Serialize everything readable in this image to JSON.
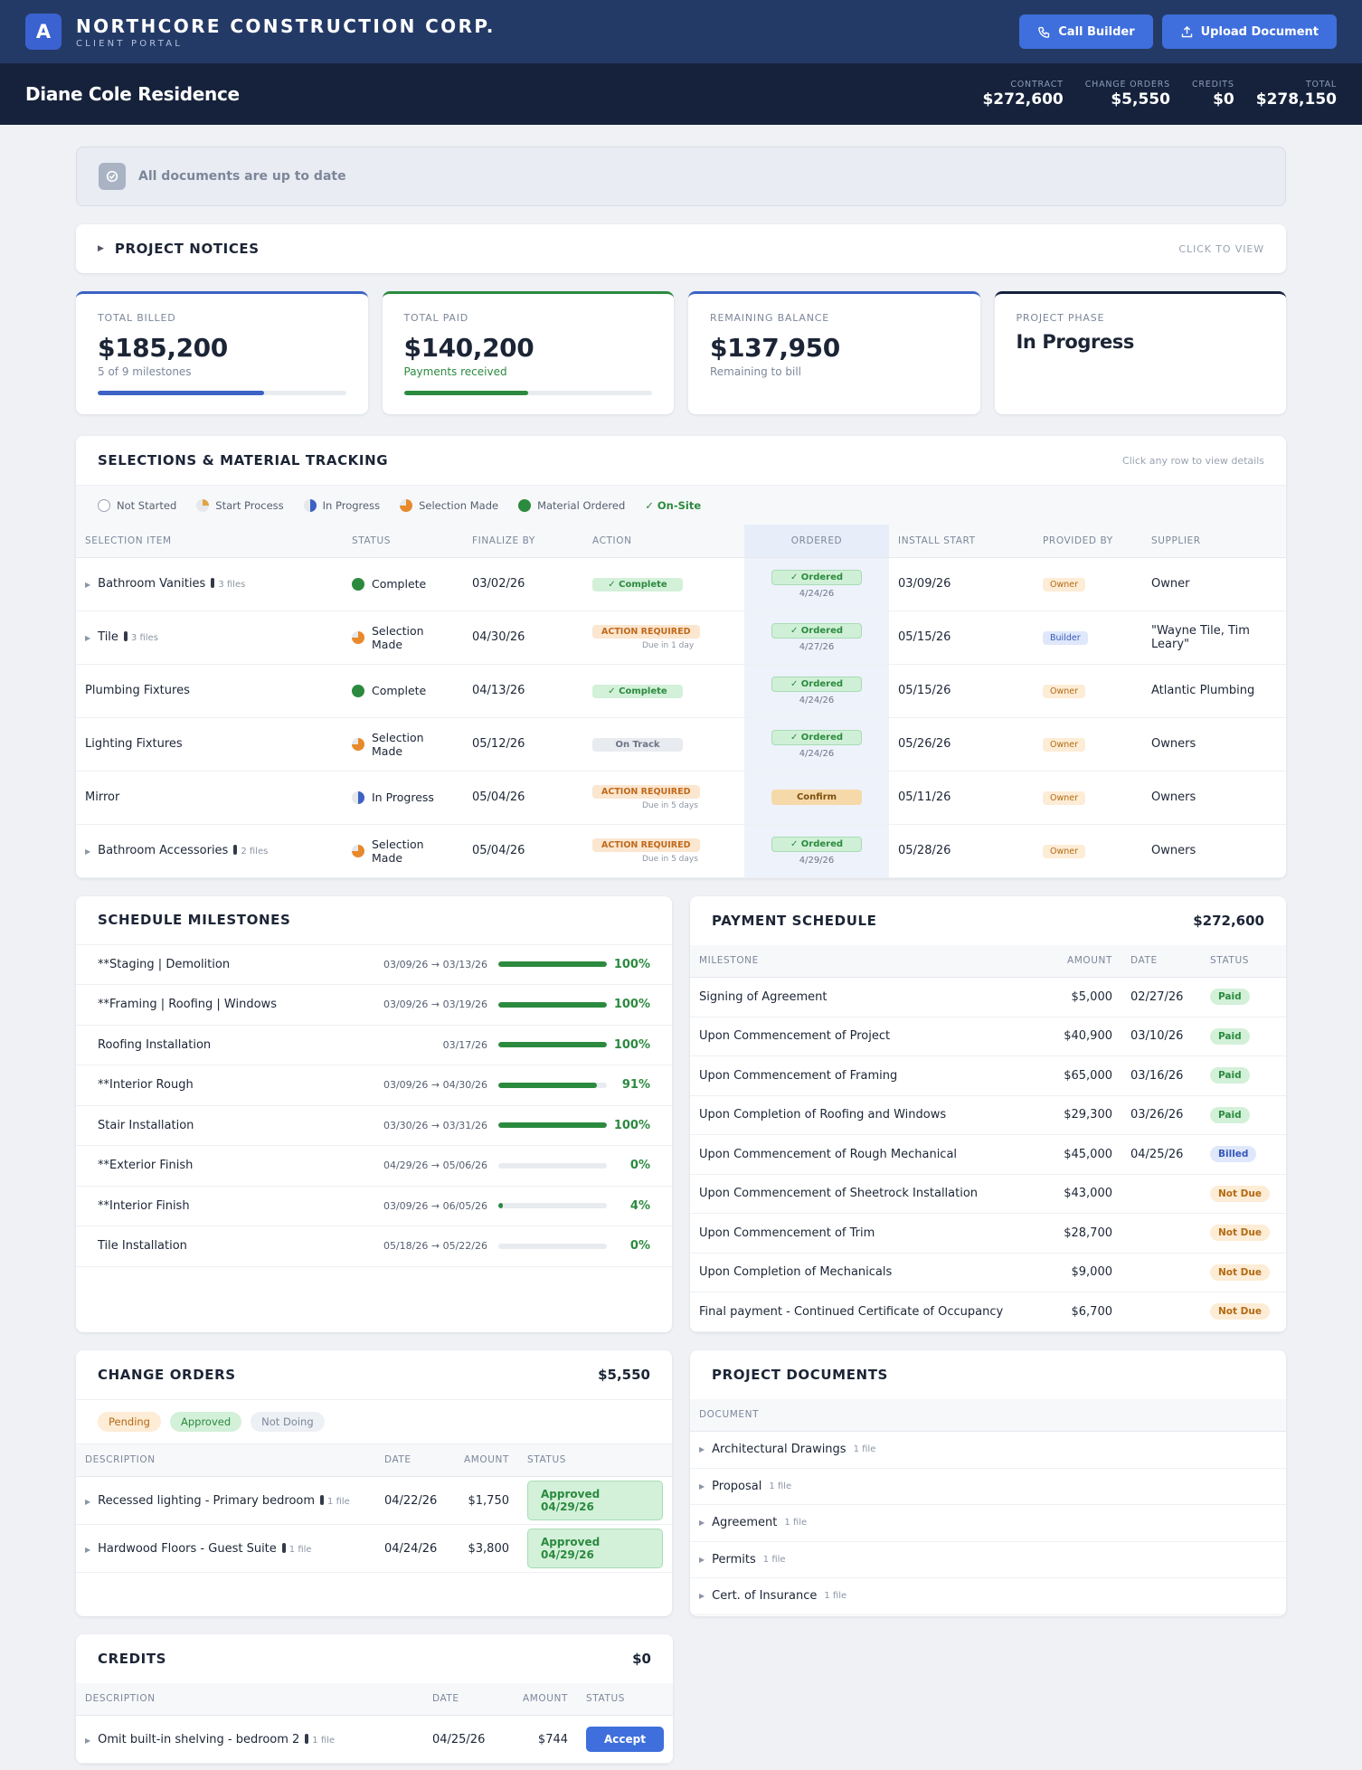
{
  "company": {
    "logo_letter": "A",
    "name": "NORTHCORE CONSTRUCTION CORP.",
    "subtitle": "CLIENT PORTAL"
  },
  "top_actions": {
    "call": "Call Builder",
    "upload": "Upload Document"
  },
  "project": {
    "title": "Diane Cole Residence"
  },
  "totals": [
    {
      "label": "CONTRACT",
      "value": "$272,600"
    },
    {
      "label": "CHANGE ORDERS",
      "value": "$5,550"
    },
    {
      "label": "CREDITS",
      "value": "$0"
    },
    {
      "label": "TOTAL",
      "value": "$278,150"
    }
  ],
  "doc_status": "All documents are up to date",
  "notices": {
    "title": "PROJECT NOTICES",
    "hint": "CLICK TO VIEW"
  },
  "stats": [
    {
      "label": "TOTAL BILLED",
      "value": "$185,200",
      "sub": "5 of 9 milestones",
      "progress": 0.67,
      "accent": "#3b62c4"
    },
    {
      "label": "TOTAL PAID",
      "value": "$140,200",
      "sub": "Payments received",
      "progress": 0.5,
      "accent": "#2b8a3e"
    },
    {
      "label": "REMAINING BALANCE",
      "value": "$137,950",
      "sub": "Remaining to bill",
      "accent": "#3b62c4"
    },
    {
      "label": "PROJECT PHASE",
      "value": "In Progress",
      "accent": "#16223b"
    }
  ],
  "selections": {
    "title": "SELECTIONS & MATERIAL TRACKING",
    "hint": "Click any row to view details",
    "legend": [
      "Not Started",
      "Start Process",
      "In Progress",
      "Selection Made",
      "Material Ordered",
      "✓ On-Site"
    ],
    "columns": [
      "SELECTION ITEM",
      "STATUS",
      "FINALIZE BY",
      "ACTION",
      "ORDERED",
      "INSTALL START",
      "PROVIDED BY",
      "SUPPLIER"
    ],
    "rows": [
      {
        "item": "Bathroom Vanities",
        "files": "3 files",
        "status": "Complete",
        "finalize": "03/02/26",
        "action": "✓ Complete",
        "ordered": "✓ Ordered",
        "ordered_date": "4/24/26",
        "install": "03/09/26",
        "provided": "Owner",
        "supplier": "Owner"
      },
      {
        "item": "Tile",
        "files": "3 files",
        "status": "Selection Made",
        "finalize": "04/30/26",
        "action": "ACTION REQUIRED",
        "due": "Due in 1 day",
        "ordered": "✓ Ordered",
        "ordered_date": "4/27/26",
        "install": "05/15/26",
        "provided": "Builder",
        "supplier": "\"Wayne Tile, Tim Leary\""
      },
      {
        "item": "Plumbing Fixtures",
        "status": "Complete",
        "finalize": "04/13/26",
        "action": "✓ Complete",
        "ordered": "✓ Ordered",
        "ordered_date": "4/24/26",
        "install": "05/15/26",
        "provided": "Owner",
        "supplier": "Atlantic Plumbing"
      },
      {
        "item": "Lighting Fixtures",
        "status": "Selection Made",
        "finalize": "05/12/26",
        "action": "On Track",
        "ordered": "✓ Ordered",
        "ordered_date": "4/24/26",
        "install": "05/26/26",
        "provided": "Owner",
        "supplier": "Owners"
      },
      {
        "item": "Mirror",
        "status": "In Progress",
        "finalize": "05/04/26",
        "action": "ACTION REQUIRED",
        "due": "Due in 5 days",
        "ordered": "Confirm",
        "install": "05/11/26",
        "provided": "Owner",
        "supplier": "Owners"
      },
      {
        "item": "Bathroom Accessories",
        "files": "2 files",
        "status": "Selection Made",
        "finalize": "05/04/26",
        "action": "ACTION REQUIRED",
        "due": "Due in 5 days",
        "ordered": "✓ Ordered",
        "ordered_date": "4/29/26",
        "install": "05/28/26",
        "provided": "Owner",
        "supplier": "Owners"
      }
    ]
  },
  "milestones": {
    "title": "SCHEDULE MILESTONES",
    "rows": [
      {
        "name": "**Staging | Demolition",
        "dates": "03/09/26 → 03/13/26",
        "pct": "100%",
        "progress": 1.0
      },
      {
        "name": "**Framing | Roofing | Windows",
        "dates": "03/09/26 → 03/19/26",
        "pct": "100%",
        "progress": 1.0
      },
      {
        "name": "Roofing Installation",
        "dates": "03/17/26",
        "pct": "100%",
        "progress": 1.0
      },
      {
        "name": "**Interior Rough",
        "dates": "03/09/26 → 04/30/26",
        "pct": "91%",
        "progress": 0.91
      },
      {
        "name": "Stair Installation",
        "dates": "03/30/26 → 03/31/26",
        "pct": "100%",
        "progress": 1.0
      },
      {
        "name": "**Exterior Finish",
        "dates": "04/29/26 → 05/06/26",
        "pct": "0%",
        "progress": 0.0
      },
      {
        "name": "**Interior Finish",
        "dates": "03/09/26 → 06/05/26",
        "pct": "4%",
        "progress": 0.04
      },
      {
        "name": "Tile Installation",
        "dates": "05/18/26 → 05/22/26",
        "pct": "0%",
        "progress": 0.0
      }
    ]
  },
  "payments": {
    "title": "PAYMENT SCHEDULE",
    "total": "$272,600",
    "columns": [
      "MILESTONE",
      "AMOUNT",
      "DATE",
      "STATUS"
    ],
    "rows": [
      {
        "milestone": "Signing of Agreement",
        "amount": "$5,000",
        "date": "02/27/26",
        "status": "Paid"
      },
      {
        "milestone": "Upon Commencement of Project",
        "amount": "$40,900",
        "date": "03/10/26",
        "status": "Paid"
      },
      {
        "milestone": "Upon Commencement of Framing",
        "amount": "$65,000",
        "date": "03/16/26",
        "status": "Paid"
      },
      {
        "milestone": "Upon Completion of Roofing and Windows",
        "amount": "$29,300",
        "date": "03/26/26",
        "status": "Paid"
      },
      {
        "milestone": "Upon Commencement of Rough Mechanical",
        "amount": "$45,000",
        "date": "04/25/26",
        "status": "Billed"
      },
      {
        "milestone": "Upon Commencement of Sheetrock Installation",
        "amount": "$43,000",
        "date": "",
        "status": "Not Due"
      },
      {
        "milestone": "Upon Commencement of Trim",
        "amount": "$28,700",
        "date": "",
        "status": "Not Due"
      },
      {
        "milestone": "Upon Completion of Mechanicals",
        "amount": "$9,000",
        "date": "",
        "status": "Not Due"
      },
      {
        "milestone": "Final payment - Continued Certificate of Occupancy",
        "amount": "$6,700",
        "date": "",
        "status": "Not Due"
      }
    ]
  },
  "change_orders": {
    "title": "CHANGE ORDERS",
    "total": "$5,550",
    "filters": [
      "Pending",
      "Approved",
      "Not Doing"
    ],
    "columns": [
      "DESCRIPTION",
      "DATE",
      "AMOUNT",
      "STATUS"
    ],
    "rows": [
      {
        "desc": "Recessed lighting - Primary bedroom",
        "files": "1 file",
        "date": "04/22/26",
        "amount": "$1,750",
        "status": "Approved 04/29/26"
      },
      {
        "desc": "Hardwood Floors - Guest Suite",
        "files": "1 file",
        "date": "04/24/26",
        "amount": "$3,800",
        "status": "Approved 04/29/26"
      }
    ]
  },
  "documents": {
    "title": "PROJECT DOCUMENTS",
    "column": "DOCUMENT",
    "rows": [
      {
        "name": "Architectural Drawings",
        "files": "1 file"
      },
      {
        "name": "Proposal",
        "files": "1 file"
      },
      {
        "name": "Agreement",
        "files": "1 file"
      },
      {
        "name": "Permits",
        "files": "1 file"
      },
      {
        "name": "Cert. of Insurance",
        "files": "1 file"
      }
    ]
  },
  "credits": {
    "title": "CREDITS",
    "total": "$0",
    "columns": [
      "DESCRIPTION",
      "DATE",
      "AMOUNT",
      "STATUS"
    ],
    "rows": [
      {
        "desc": "Omit built-in shelving - bedroom 2",
        "files": "1 file",
        "date": "04/25/26",
        "amount": "$744",
        "action": "Accept"
      }
    ]
  },
  "colors": {
    "navy": "#243a66",
    "dark_navy": "#16223b",
    "primary": "#3f6fdc",
    "green": "#2b8a3e",
    "orange": "#e8892b"
  },
  "icons": {
    "logo": "letter-logo",
    "call": "phone-icon",
    "upload": "upload-icon",
    "status": "check-icon",
    "expand": "caret-right-icon",
    "file": "file-icon"
  }
}
